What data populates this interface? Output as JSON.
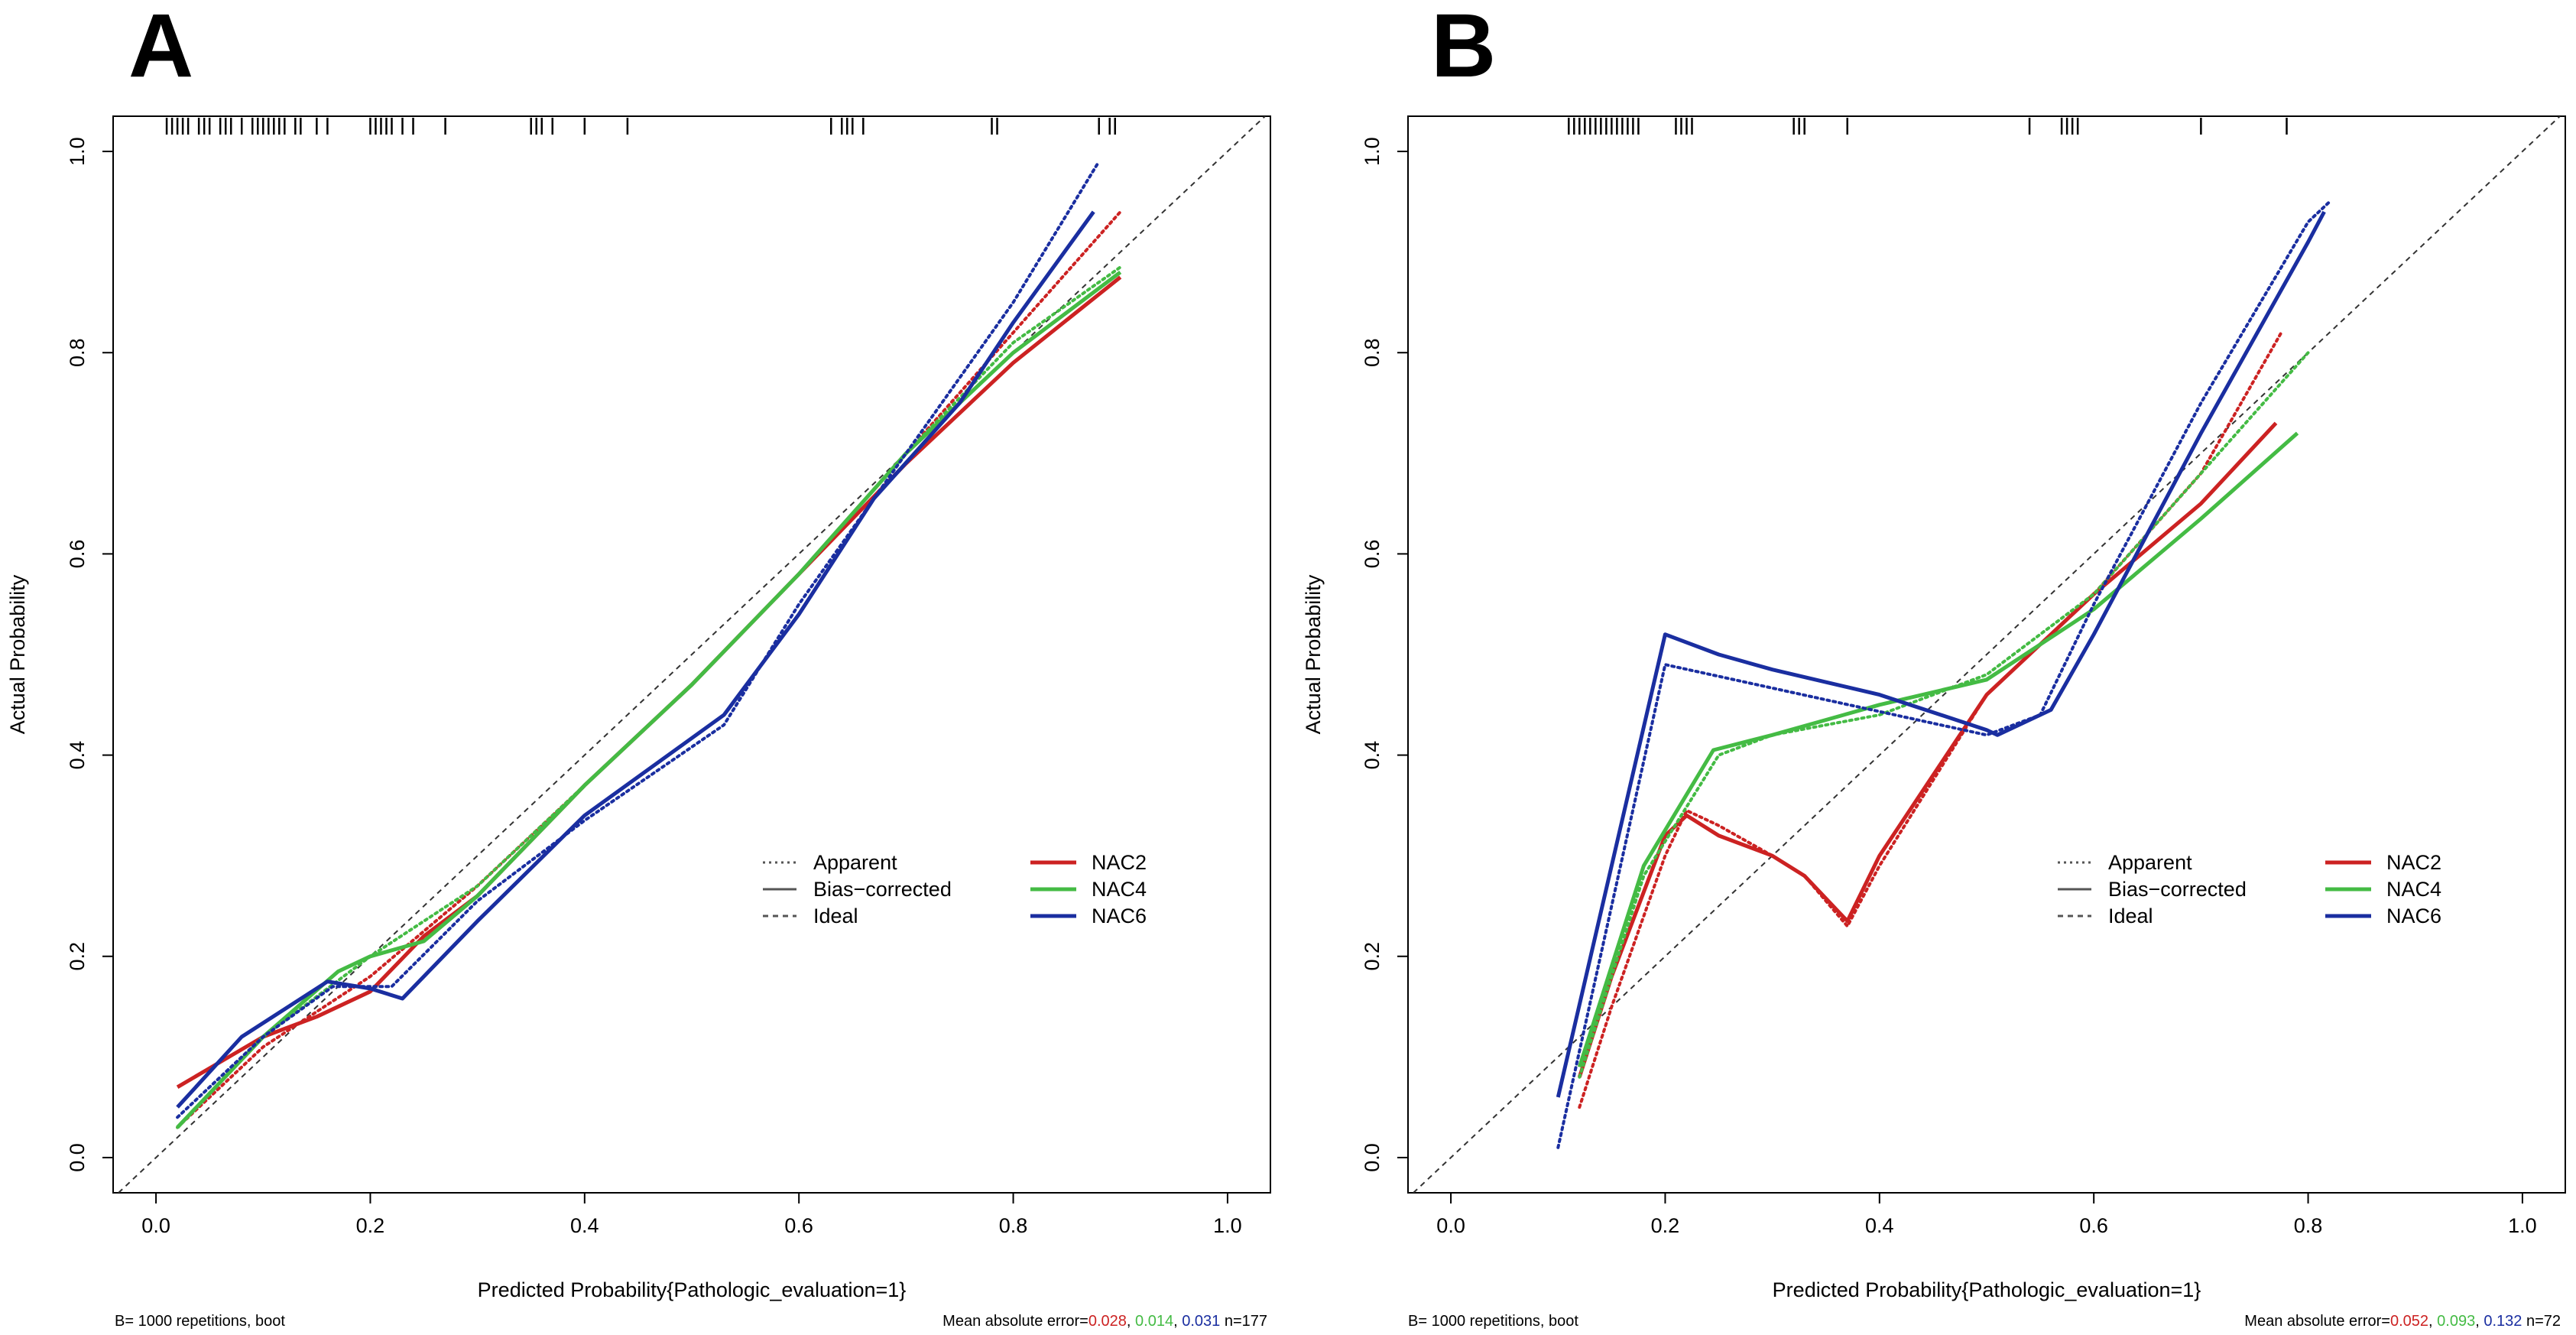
{
  "chart_data": [
    {
      "type": "line",
      "panel_label": "A",
      "xlabel": "Predicted Probability{Pathologic_evaluation=1}",
      "ylabel": "Actual Probability",
      "xlim": [
        -0.04,
        1.04
      ],
      "ylim": [
        -0.035,
        1.035
      ],
      "x_ticks": [
        0.0,
        0.2,
        0.4,
        0.6,
        0.8,
        1.0
      ],
      "y_ticks": [
        0.0,
        0.2,
        0.4,
        0.6,
        0.8,
        1.0
      ],
      "x_tick_labels": [
        "0.0",
        "0.2",
        "0.4",
        "0.6",
        "0.8",
        "1.0"
      ],
      "y_tick_labels": [
        "0.0",
        "0.2",
        "0.4",
        "0.6",
        "0.8",
        "1.0"
      ],
      "footer_left": "B= 1000 repetitions, boot",
      "footer_mae_prefix": "Mean absolute error=",
      "footer_mae": [
        "0.028",
        "0.014",
        "0.031"
      ],
      "footer_n": " n=177",
      "legend_line_styles": [
        "Apparent",
        "Bias−corrected",
        "Ideal"
      ],
      "rug_x": [
        0.01,
        0.015,
        0.02,
        0.025,
        0.03,
        0.04,
        0.045,
        0.05,
        0.06,
        0.065,
        0.07,
        0.08,
        0.09,
        0.095,
        0.1,
        0.105,
        0.11,
        0.115,
        0.12,
        0.13,
        0.135,
        0.15,
        0.16,
        0.2,
        0.205,
        0.21,
        0.215,
        0.22,
        0.23,
        0.24,
        0.27,
        0.35,
        0.355,
        0.36,
        0.37,
        0.4,
        0.44,
        0.63,
        0.64,
        0.645,
        0.65,
        0.66,
        0.78,
        0.785,
        0.88,
        0.89,
        0.895
      ],
      "series": [
        {
          "name": "NAC2",
          "color": "#cc2222",
          "apparent": {
            "x": [
              0.02,
              0.1,
              0.2,
              0.3,
              0.4,
              0.5,
              0.6,
              0.7,
              0.8,
              0.9
            ],
            "y": [
              0.03,
              0.11,
              0.18,
              0.27,
              0.37,
              0.47,
              0.58,
              0.7,
              0.82,
              0.94
            ]
          },
          "bias_corrected": {
            "x": [
              0.02,
              0.06,
              0.1,
              0.15,
              0.2,
              0.25,
              0.3,
              0.4,
              0.5,
              0.6,
              0.7,
              0.8,
              0.9
            ],
            "y": [
              0.07,
              0.095,
              0.12,
              0.14,
              0.165,
              0.22,
              0.26,
              0.37,
              0.47,
              0.58,
              0.69,
              0.79,
              0.875
            ]
          }
        },
        {
          "name": "NAC4",
          "color": "#44bb44",
          "apparent": {
            "x": [
              0.02,
              0.1,
              0.2,
              0.3,
              0.4,
              0.5,
              0.6,
              0.7,
              0.8,
              0.9
            ],
            "y": [
              0.03,
              0.12,
              0.2,
              0.27,
              0.37,
              0.47,
              0.58,
              0.7,
              0.81,
              0.885
            ]
          },
          "bias_corrected": {
            "x": [
              0.02,
              0.1,
              0.17,
              0.2,
              0.25,
              0.3,
              0.4,
              0.5,
              0.6,
              0.7,
              0.8,
              0.9
            ],
            "y": [
              0.03,
              0.12,
              0.185,
              0.2,
              0.215,
              0.26,
              0.37,
              0.47,
              0.58,
              0.7,
              0.8,
              0.88
            ]
          }
        },
        {
          "name": "NAC6",
          "color": "#1a2ea0",
          "apparent": {
            "x": [
              0.02,
              0.1,
              0.165,
              0.22,
              0.3,
              0.4,
              0.53,
              0.6,
              0.7,
              0.8,
              0.88
            ],
            "y": [
              0.04,
              0.12,
              0.17,
              0.17,
              0.255,
              0.335,
              0.43,
              0.55,
              0.7,
              0.85,
              0.99
            ]
          },
          "bias_corrected": {
            "x": [
              0.02,
              0.08,
              0.16,
              0.2,
              0.23,
              0.3,
              0.4,
              0.53,
              0.6,
              0.67,
              0.75,
              0.8,
              0.875
            ],
            "y": [
              0.05,
              0.12,
              0.175,
              0.168,
              0.158,
              0.235,
              0.34,
              0.44,
              0.54,
              0.655,
              0.75,
              0.83,
              0.94
            ]
          }
        }
      ]
    },
    {
      "type": "line",
      "panel_label": "B",
      "xlabel": "Predicted Probability{Pathologic_evaluation=1}",
      "ylabel": "Actual Probability",
      "xlim": [
        -0.04,
        1.04
      ],
      "ylim": [
        -0.035,
        1.035
      ],
      "x_ticks": [
        0.0,
        0.2,
        0.4,
        0.6,
        0.8,
        1.0
      ],
      "y_ticks": [
        0.0,
        0.2,
        0.4,
        0.6,
        0.8,
        1.0
      ],
      "x_tick_labels": [
        "0.0",
        "0.2",
        "0.4",
        "0.6",
        "0.8",
        "1.0"
      ],
      "y_tick_labels": [
        "0.0",
        "0.2",
        "0.4",
        "0.6",
        "0.8",
        "1.0"
      ],
      "footer_left": "B= 1000 repetitions, boot",
      "footer_mae_prefix": "Mean absolute error=",
      "footer_mae": [
        "0.052",
        "0.093",
        "0.132"
      ],
      "footer_n": " n=72",
      "legend_line_styles": [
        "Apparent",
        "Bias−corrected",
        "Ideal"
      ],
      "rug_x": [
        0.11,
        0.115,
        0.12,
        0.125,
        0.13,
        0.135,
        0.14,
        0.145,
        0.15,
        0.155,
        0.16,
        0.165,
        0.17,
        0.175,
        0.21,
        0.215,
        0.22,
        0.225,
        0.32,
        0.325,
        0.33,
        0.37,
        0.54,
        0.57,
        0.575,
        0.58,
        0.585,
        0.7,
        0.78
      ],
      "series": [
        {
          "name": "NAC2",
          "color": "#cc2222",
          "apparent": {
            "x": [
              0.12,
              0.15,
              0.2,
              0.22,
              0.25,
              0.3,
              0.33,
              0.37,
              0.4,
              0.5,
              0.6,
              0.7,
              0.775
            ],
            "y": [
              0.05,
              0.15,
              0.3,
              0.345,
              0.33,
              0.3,
              0.28,
              0.23,
              0.29,
              0.46,
              0.56,
              0.68,
              0.82
            ]
          },
          "bias_corrected": {
            "x": [
              0.12,
              0.15,
              0.2,
              0.22,
              0.25,
              0.3,
              0.33,
              0.37,
              0.4,
              0.5,
              0.6,
              0.7,
              0.77
            ],
            "y": [
              0.08,
              0.18,
              0.32,
              0.34,
              0.32,
              0.3,
              0.28,
              0.235,
              0.3,
              0.46,
              0.56,
              0.65,
              0.73
            ]
          }
        },
        {
          "name": "NAC4",
          "color": "#44bb44",
          "apparent": {
            "x": [
              0.12,
              0.18,
              0.25,
              0.3,
              0.4,
              0.5,
              0.6,
              0.7,
              0.8
            ],
            "y": [
              0.08,
              0.28,
              0.4,
              0.42,
              0.44,
              0.48,
              0.56,
              0.68,
              0.8
            ]
          },
          "bias_corrected": {
            "x": [
              0.12,
              0.18,
              0.245,
              0.3,
              0.4,
              0.5,
              0.6,
              0.7,
              0.79
            ],
            "y": [
              0.09,
              0.29,
              0.405,
              0.42,
              0.45,
              0.475,
              0.545,
              0.635,
              0.72
            ]
          }
        },
        {
          "name": "NAC6",
          "color": "#1a2ea0",
          "apparent": {
            "x": [
              0.1,
              0.2,
              0.5,
              0.55,
              0.6,
              0.7,
              0.8,
              0.82
            ],
            "y": [
              0.01,
              0.49,
              0.42,
              0.44,
              0.55,
              0.75,
              0.93,
              0.95
            ]
          },
          "bias_corrected": {
            "x": [
              0.1,
              0.2,
              0.25,
              0.3,
              0.4,
              0.5,
              0.51,
              0.56,
              0.6,
              0.7,
              0.8,
              0.815
            ],
            "y": [
              0.06,
              0.52,
              0.5,
              0.485,
              0.46,
              0.425,
              0.42,
              0.445,
              0.52,
              0.72,
              0.91,
              0.94
            ]
          }
        }
      ]
    }
  ]
}
